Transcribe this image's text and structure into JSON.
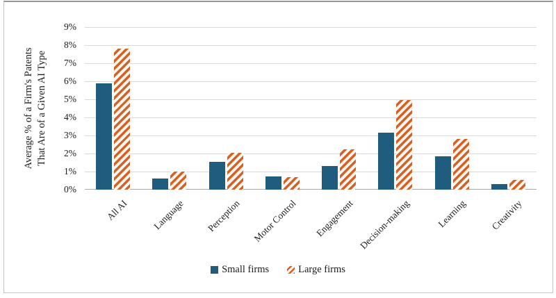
{
  "figure": {
    "background": "#ffffff",
    "border_color": "#c5c5c5",
    "border_top_color": "#979797"
  },
  "chart_data": {
    "type": "bar",
    "title": "",
    "categories": [
      "All AI",
      "Language",
      "Perception",
      "Motor Control",
      "Engagement",
      "Decision-making",
      "Learning",
      "Creativity"
    ],
    "series": [
      {
        "name": "Small firms",
        "values": [
          5.9,
          0.6,
          1.55,
          0.75,
          1.3,
          3.15,
          1.85,
          0.3
        ],
        "color": "#1f5c7d",
        "pattern": "solid"
      },
      {
        "name": "Large firms",
        "values": [
          7.8,
          1.0,
          2.05,
          0.7,
          2.25,
          4.95,
          2.8,
          0.55
        ],
        "color": "#d2622a",
        "pattern": "diagonal-hatch",
        "pattern_bg": "#fdf6ec"
      }
    ],
    "xlabel": "",
    "ylabel": "Average % of a Firm's Patents That Are of a Given AI Type",
    "ylabel_lines": [
      "Average % of a Firm's Patents",
      "That Are of a Given AI Type"
    ],
    "y_ticks": [
      "0%",
      "1%",
      "2%",
      "3%",
      "4%",
      "5%",
      "6%",
      "7%",
      "8%",
      "9%"
    ],
    "ylim": [
      0,
      9
    ],
    "y_tick_step": 1,
    "grid": true,
    "grid_color": "#d9d9d9",
    "axis_line_color": "#a8a8a8",
    "text_color": "#1c1c1c",
    "legend_position": "bottom"
  }
}
